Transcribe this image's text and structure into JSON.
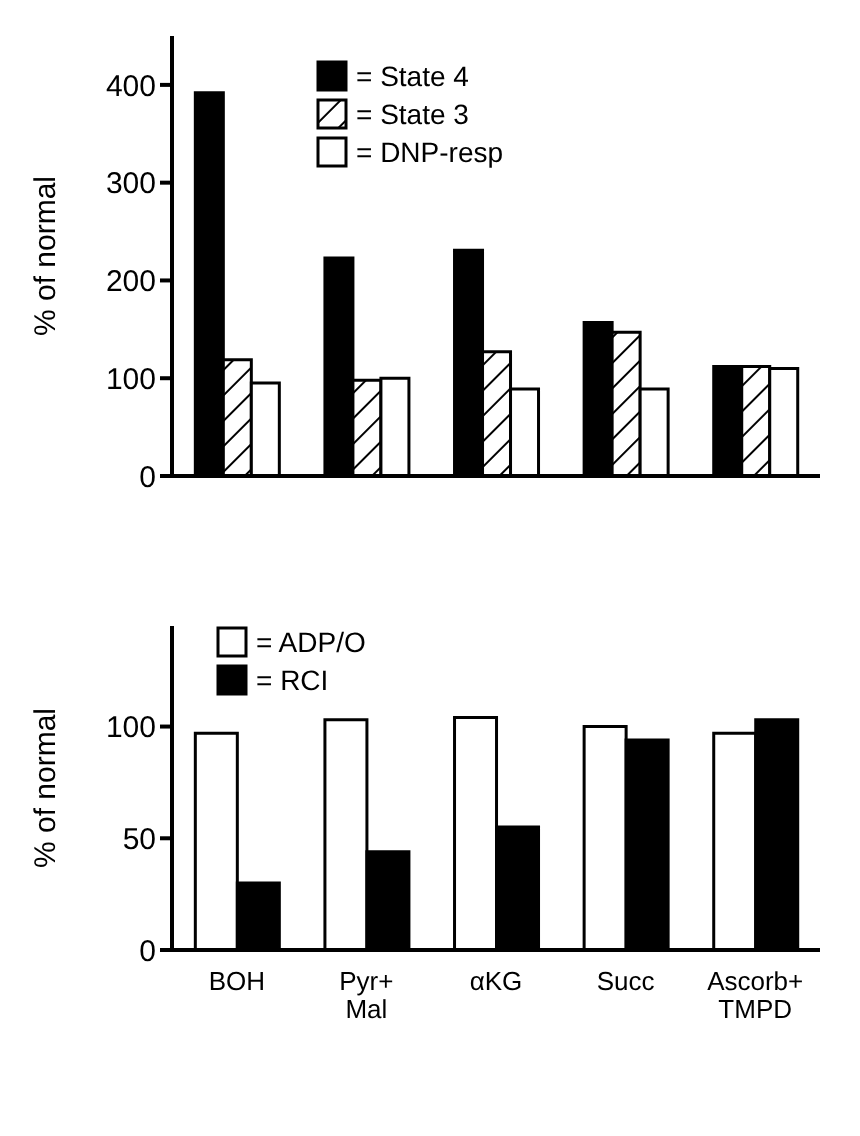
{
  "chart_data": [
    {
      "type": "bar",
      "ylabel": "% of normal",
      "categories": [
        null,
        null,
        null,
        null,
        null
      ],
      "ylim": [
        0,
        450
      ],
      "yticks": [
        0,
        100,
        200,
        300,
        400
      ],
      "tick_labels": "y",
      "legend": "top",
      "grid": false,
      "series": [
        {
          "name": "= State 4",
          "color": "#000000",
          "values": [
            392,
            223,
            231,
            157,
            112
          ]
        },
        {
          "name": "= State 3",
          "color": "#000000",
          "values": [
            119,
            98,
            127,
            147,
            112
          ]
        },
        {
          "name": "= DNP-resp",
          "color": "#ffffff",
          "values": [
            95,
            100,
            89,
            89,
            110
          ]
        }
      ]
    },
    {
      "type": "bar",
      "ylabel": "% of normal",
      "categories": [
        "BOH",
        "Pyr+\nMal",
        "αKG",
        "Succ",
        "Ascorb+\nTMPD"
      ],
      "ylim": [
        0,
        145
      ],
      "yticks": [
        0,
        50,
        100
      ],
      "legend": "top left",
      "grid": false,
      "series": [
        {
          "name": "= ADP/O",
          "color": "#ffffff",
          "values": [
            97,
            103,
            104,
            100,
            97
          ]
        },
        {
          "name": "= RCI",
          "color": "#000000",
          "values": [
            30,
            44,
            55,
            94,
            103
          ]
        }
      ]
    }
  ]
}
